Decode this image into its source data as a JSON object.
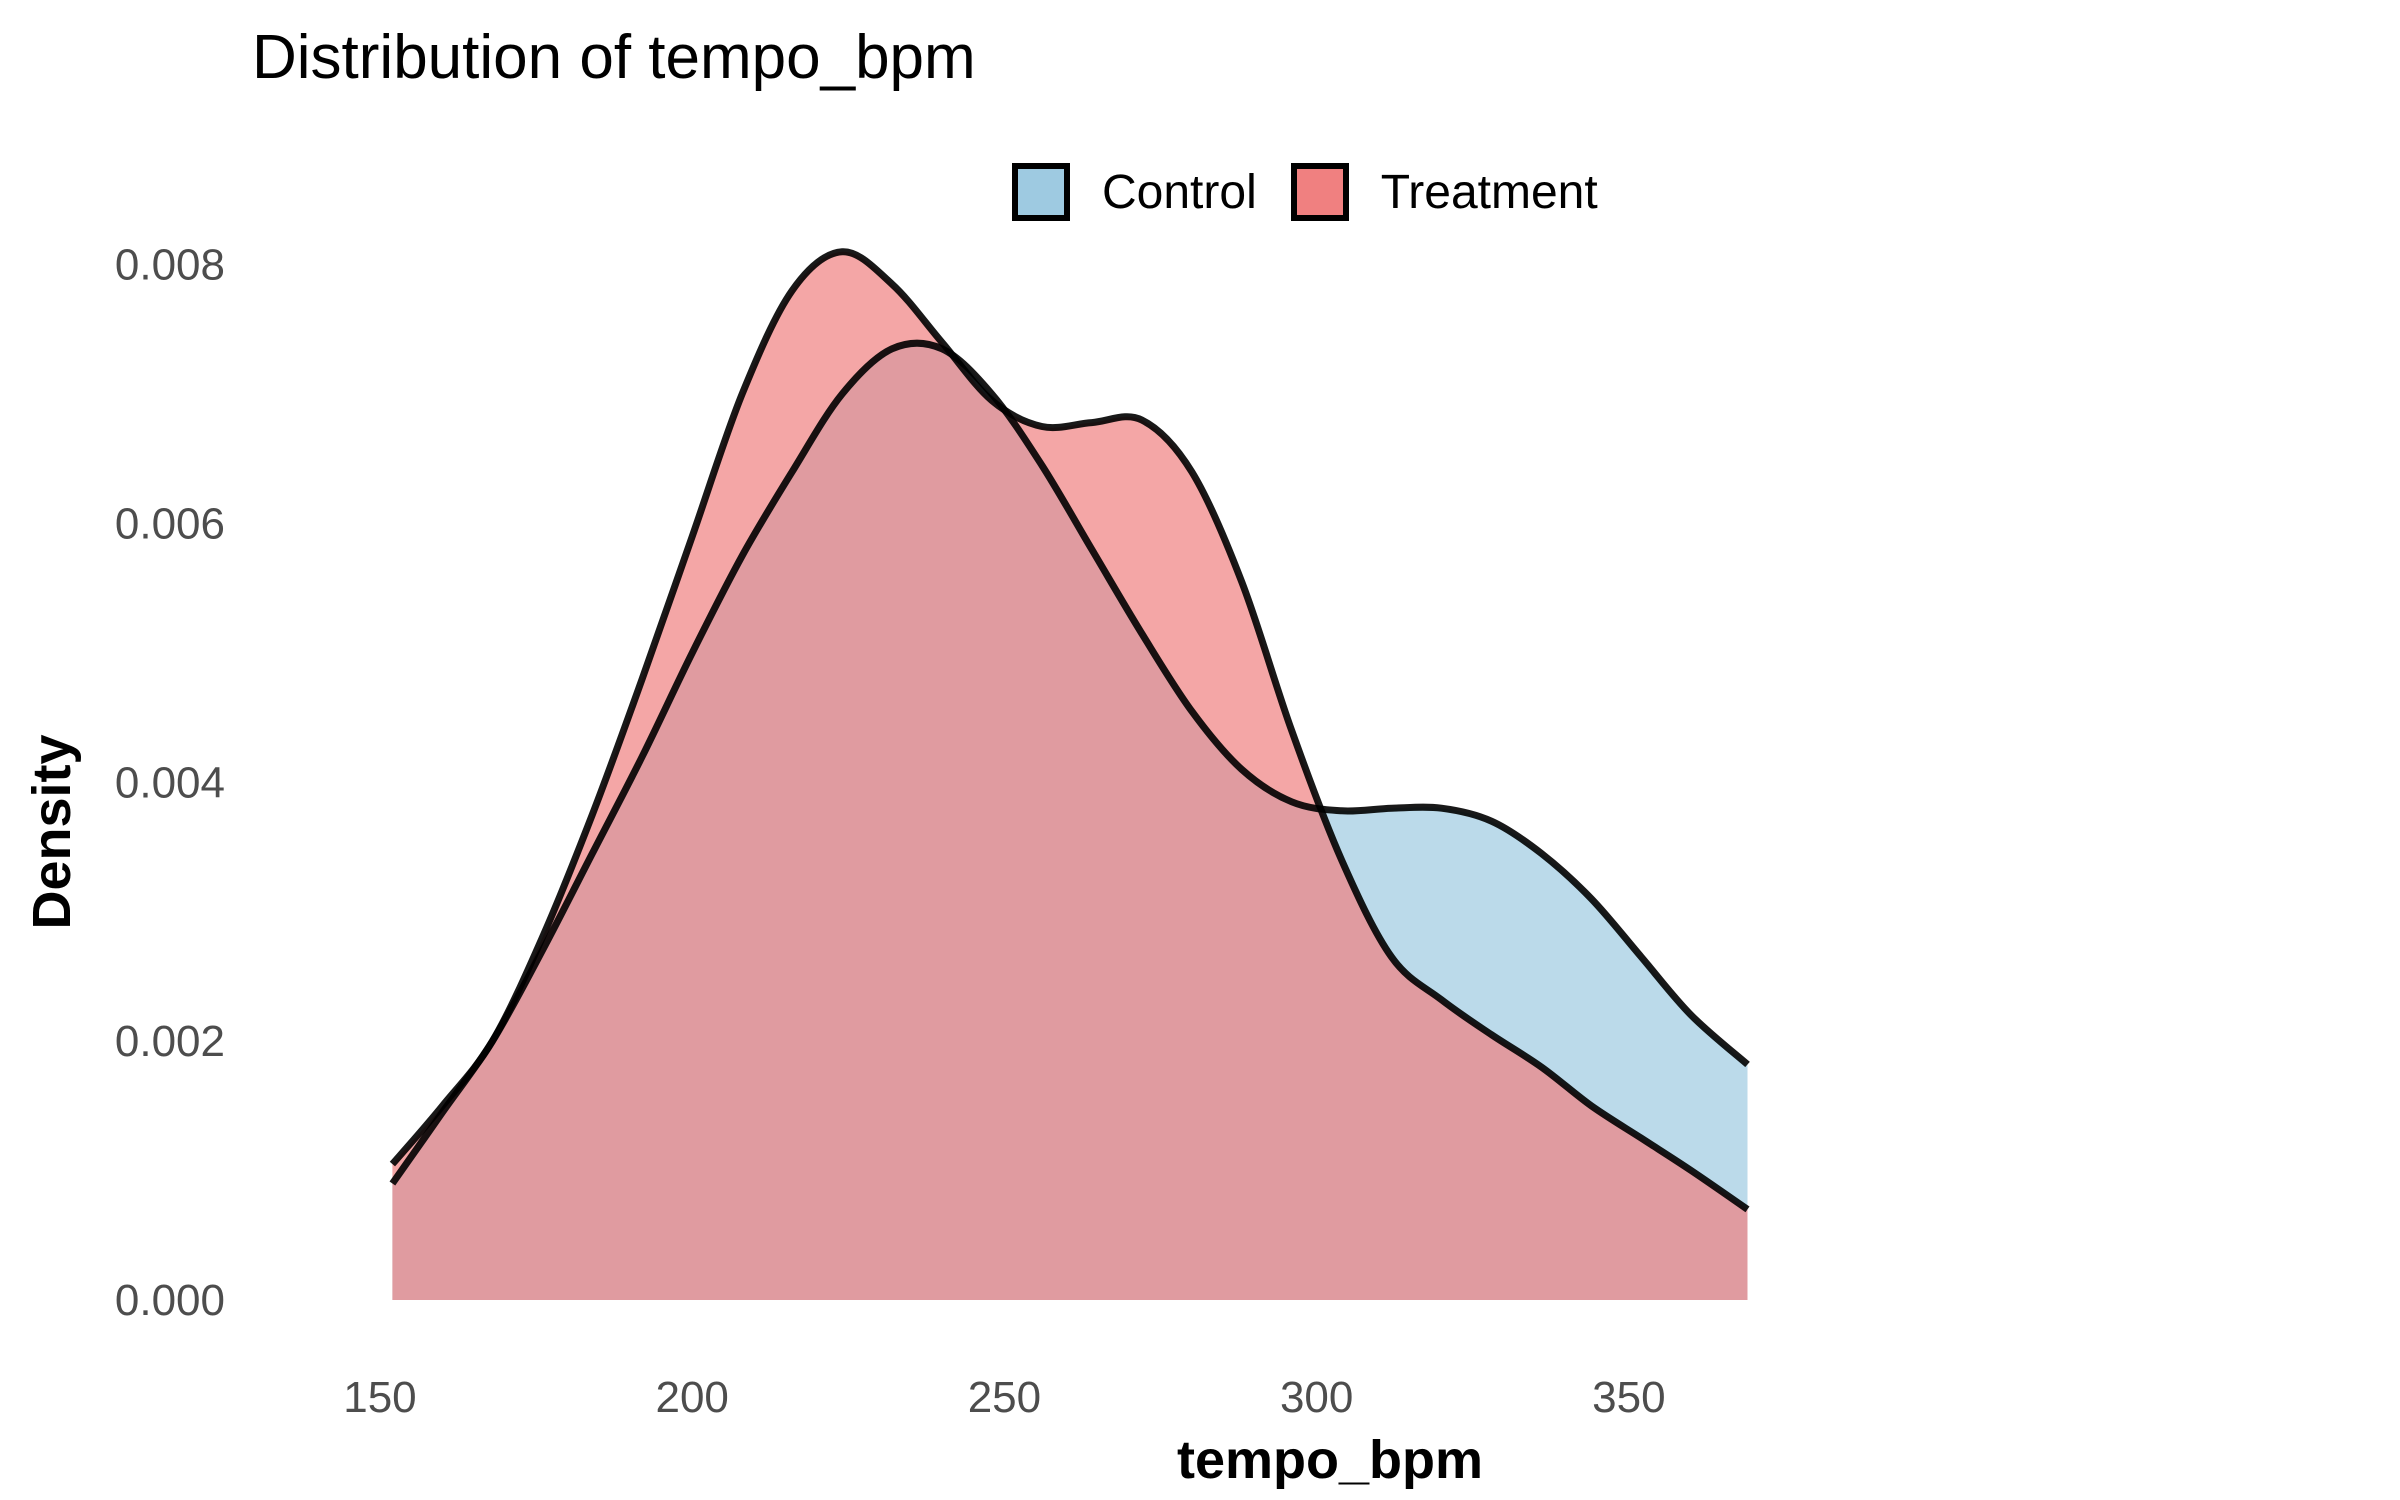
{
  "chart_data": {
    "type": "area",
    "title": "Distribution of tempo_bpm",
    "xlabel": "tempo_bpm",
    "ylabel": "Density",
    "xlim": [
      142,
      375
    ],
    "ylim": [
      0,
      0.0085
    ],
    "x_ticks": [
      150,
      200,
      250,
      300,
      350
    ],
    "y_ticks": [
      0.0,
      0.002,
      0.004,
      0.006,
      0.008
    ],
    "x_tick_labels": [
      "150",
      "200",
      "250",
      "300",
      "350"
    ],
    "y_tick_labels": [
      "0.000",
      "0.002",
      "0.004",
      "0.006",
      "0.008"
    ],
    "grid": false,
    "legend_position": "top",
    "series": [
      {
        "name": "Control",
        "fill": "#9ecae1",
        "x": [
          152,
          160,
          168,
          176,
          184,
          192,
          200,
          208,
          216,
          224,
          232,
          240,
          248,
          256,
          264,
          272,
          280,
          288,
          296,
          304,
          312,
          320,
          328,
          336,
          344,
          352,
          360,
          369
        ],
        "values": [
          0.0009,
          0.00145,
          0.002,
          0.0027,
          0.00345,
          0.0042,
          0.005,
          0.00575,
          0.0064,
          0.007,
          0.00735,
          0.00735,
          0.007,
          0.00645,
          0.0058,
          0.00515,
          0.00455,
          0.0041,
          0.00385,
          0.00378,
          0.0038,
          0.0038,
          0.0037,
          0.00345,
          0.0031,
          0.00265,
          0.0022,
          0.00182
        ]
      },
      {
        "name": "Treatment",
        "fill": "#f08080",
        "x": [
          152,
          160,
          168,
          176,
          184,
          192,
          200,
          208,
          216,
          224,
          232,
          240,
          248,
          256,
          264,
          272,
          280,
          288,
          296,
          304,
          312,
          320,
          328,
          336,
          344,
          352,
          360,
          369
        ],
        "values": [
          0.00105,
          0.0015,
          0.002,
          0.0028,
          0.00375,
          0.0048,
          0.0059,
          0.007,
          0.0078,
          0.0081,
          0.00785,
          0.0074,
          0.00695,
          0.00675,
          0.00678,
          0.0068,
          0.0064,
          0.00555,
          0.0044,
          0.0034,
          0.00265,
          0.00232,
          0.00205,
          0.0018,
          0.0015,
          0.00125,
          0.001,
          0.0007
        ]
      }
    ]
  }
}
